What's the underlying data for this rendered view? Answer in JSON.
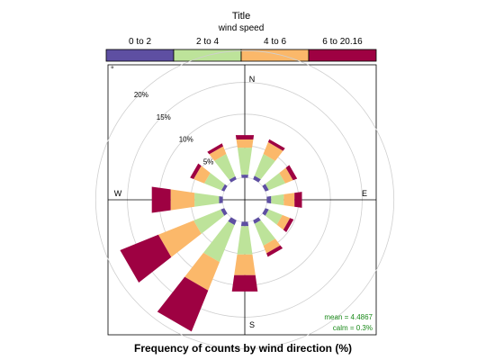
{
  "chart_data": {
    "type": "windrose",
    "title": "Frequency of counts by wind direction (%)",
    "key": {
      "title": "Title",
      "subtitle": "wind speed",
      "bins": [
        "0 to 2",
        "2 to 4",
        "4 to 6",
        "6 to 20.16"
      ],
      "colors": [
        "#5e4fa2",
        "#bde39a",
        "#fbb86a",
        "#9e0142"
      ]
    },
    "directions": [
      0,
      30,
      60,
      90,
      120,
      150,
      180,
      210,
      240,
      270,
      300,
      330
    ],
    "series": [
      {
        "name": "0 to 2",
        "values": [
          0.5,
          0.6,
          0.6,
          0.7,
          0.6,
          0.6,
          0.7,
          0.8,
          0.6,
          0.6,
          0.5,
          0.5
        ]
      },
      {
        "name": "2 to 4",
        "values": [
          4.3,
          3.7,
          2.8,
          2.0,
          2.3,
          3.7,
          4.5,
          6.3,
          4.6,
          3.9,
          2.9,
          3.8
        ]
      },
      {
        "name": "4 to 6",
        "values": [
          1.3,
          2.0,
          1.3,
          1.7,
          1.3,
          1.3,
          3.3,
          4.8,
          6.0,
          3.8,
          1.8,
          1.3
        ]
      },
      {
        "name": "6 to 20.16",
        "values": [
          0.7,
          0.5,
          0.7,
          1.2,
          0.6,
          0.6,
          2.6,
          7.0,
          6.5,
          3.0,
          0.6,
          0.5
        ]
      }
    ],
    "radial_ticks": [
      5,
      10,
      15,
      20
    ],
    "radial_tick_labels": [
      "5%",
      "10%",
      "15%",
      "20%"
    ],
    "rmax": 25,
    "compass": [
      "N",
      "E",
      "S",
      "W"
    ],
    "stats": {
      "mean": "mean = 4.4867",
      "calm": "calm = 0.3%"
    },
    "stats_color": "#1a8a1a",
    "corner_mark": "°"
  }
}
